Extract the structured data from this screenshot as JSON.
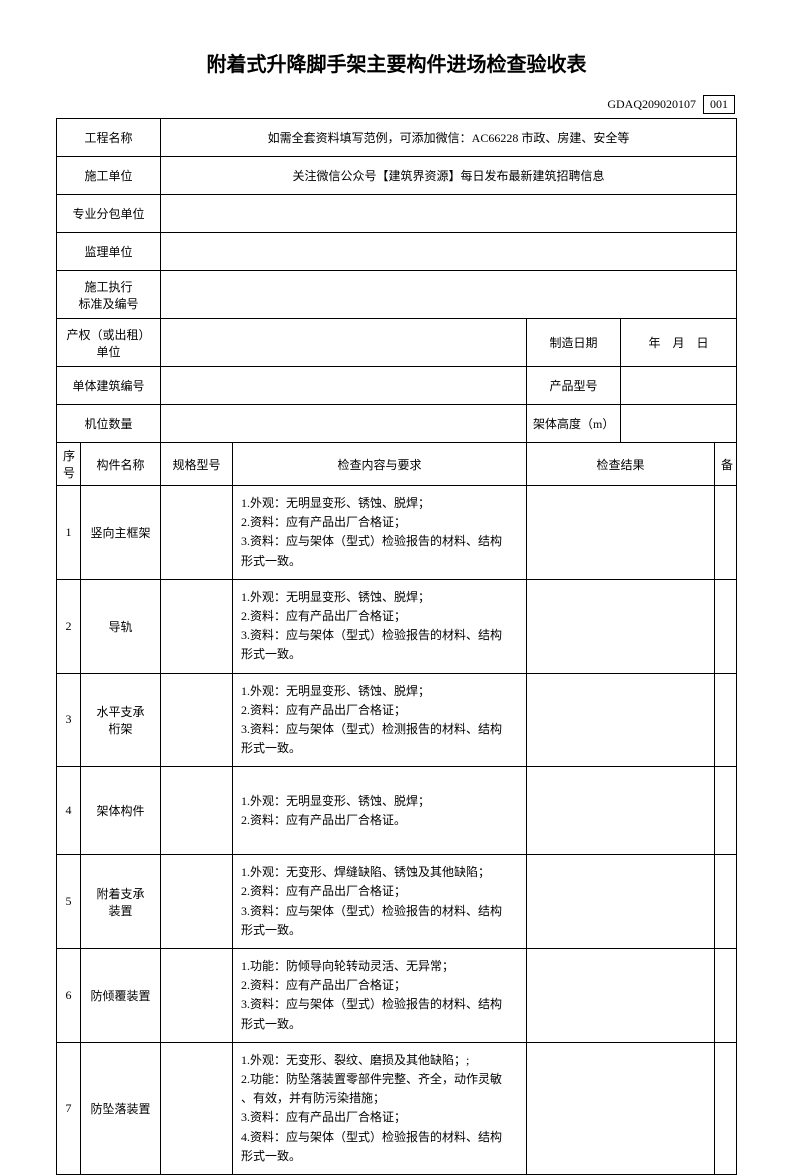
{
  "title": "附着式升降脚手架主要构件进场检查验收表",
  "form_code_prefix": "GDAQ209020107",
  "form_code_num": "001",
  "header": {
    "project_name_label": "工程名称",
    "project_name_value": "如需全套资料填写范例，可添加微信：AC66228 市政、房建、安全等",
    "construction_unit_label": "施工单位",
    "construction_unit_value": "关注微信公众号【建筑界资源】每日发布最新建筑招聘信息",
    "subcontractor_label": "专业分包单位",
    "subcontractor_value": "",
    "supervisor_label": "监理单位",
    "supervisor_value": "",
    "standard_label": "施工执行\n标准及编号",
    "standard_value": "",
    "owner_label": "产权（或出租）\n单位",
    "owner_value": "",
    "manufacture_date_label": "制造日期",
    "manufacture_date_value": "年　月　日",
    "building_no_label": "单体建筑编号",
    "building_no_value": "",
    "product_model_label": "产品型号",
    "product_model_value": "",
    "machine_count_label": "机位数量",
    "machine_count_value": "",
    "frame_height_label": "架体高度（m）",
    "frame_height_value": ""
  },
  "columns": {
    "seq": "序\n号",
    "component": "构件名称",
    "spec": "规格型号",
    "requirement": "检查内容与要求",
    "result": "检查结果",
    "remark": "备"
  },
  "rows": [
    {
      "seq": "1",
      "name": "竖向主框架",
      "spec": "",
      "req": "1.外观：无明显变形、锈蚀、脱焊；\n2.资料：应有产品出厂合格证；\n3.资料：应与架体（型式）检验报告的材料、结构\n形式一致。",
      "result": "",
      "remark": ""
    },
    {
      "seq": "2",
      "name": "导轨",
      "spec": "",
      "req": "1.外观：无明显变形、锈蚀、脱焊；\n2.资料：应有产品出厂合格证；\n3.资料：应与架体（型式）检验报告的材料、结构\n形式一致。",
      "result": "",
      "remark": ""
    },
    {
      "seq": "3",
      "name": "水平支承\n桁架",
      "spec": "",
      "req": "1.外观：无明显变形、锈蚀、脱焊；\n2.资料：应有产品出厂合格证；\n3.资料：应与架体（型式）检测报告的材料、结构\n形式一致。",
      "result": "",
      "remark": ""
    },
    {
      "seq": "4",
      "name": "架体构件",
      "spec": "",
      "req": "1.外观：无明显变形、锈蚀、脱焊；\n2.资料：应有产品出厂合格证。",
      "result": "",
      "remark": ""
    },
    {
      "seq": "5",
      "name": "附着支承\n装置",
      "spec": "",
      "req": "1.外观：无变形、焊缝缺陷、锈蚀及其他缺陷；\n2.资料：应有产品出厂合格证；\n3.资料：应与架体（型式）检验报告的材料、结构\n形式一致。",
      "result": "",
      "remark": ""
    },
    {
      "seq": "6",
      "name": "防倾覆装置",
      "spec": "",
      "req": "1.功能：防倾导向轮转动灵活、无异常；\n2.资料：应有产品出厂合格证；\n3.资料：应与架体（型式）检验报告的材料、结构\n形式一致。",
      "result": "",
      "remark": ""
    },
    {
      "seq": "7",
      "name": "防坠落装置",
      "spec": "",
      "req": "1.外观：无变形、裂纹、磨损及其他缺陷；;\n2.功能：防坠落装置零部件完整、齐全，动作灵敏\n、有效，并有防污染措施；\n3.资料：应有产品出厂合格证；\n4.资料：应与架体（型式）检验报告的材料、结构\n形式一致。",
      "result": "",
      "remark": ""
    }
  ]
}
